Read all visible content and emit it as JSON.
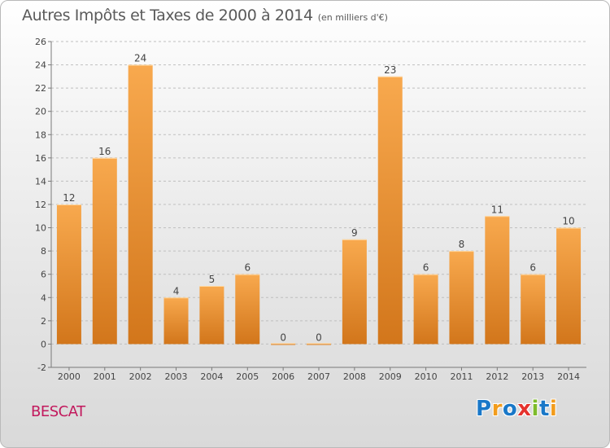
{
  "title": "Autres Impôts et Taxes de 2000 à 2014",
  "unit_note": "(en milliers d'€)",
  "commune": "BESCAT",
  "logo": {
    "text": "Proxiti",
    "letters": [
      "P",
      "r",
      "o",
      "x",
      "i",
      "t",
      "i"
    ],
    "colors": [
      "#1a78c8",
      "#f29c1c",
      "#1a78c8",
      "#e5322d",
      "#7dbb2b",
      "#1a78c8",
      "#f29c1c"
    ]
  },
  "colors": {
    "bar_top": "#f8a94e",
    "bar_bottom": "#d2761b",
    "grid": "#bfbfbf",
    "axis": "#7a7a7a"
  },
  "chart_data": {
    "type": "bar",
    "title": "Autres Impôts et Taxes de 2000 à 2014",
    "subtitle": "(en milliers d'€)",
    "xlabel": "",
    "ylabel": "",
    "ylim": [
      -2,
      26
    ],
    "yticks": [
      -2,
      0,
      2,
      4,
      6,
      8,
      10,
      12,
      14,
      16,
      18,
      20,
      22,
      24,
      26
    ],
    "grid": true,
    "legend": "none",
    "categories": [
      "2000",
      "2001",
      "2002",
      "2003",
      "2004",
      "2005",
      "2006",
      "2007",
      "2008",
      "2009",
      "2010",
      "2011",
      "2012",
      "2013",
      "2014"
    ],
    "values": [
      12,
      16,
      24,
      4,
      5,
      6,
      0,
      0,
      9,
      23,
      6,
      8,
      11,
      6,
      10
    ]
  }
}
